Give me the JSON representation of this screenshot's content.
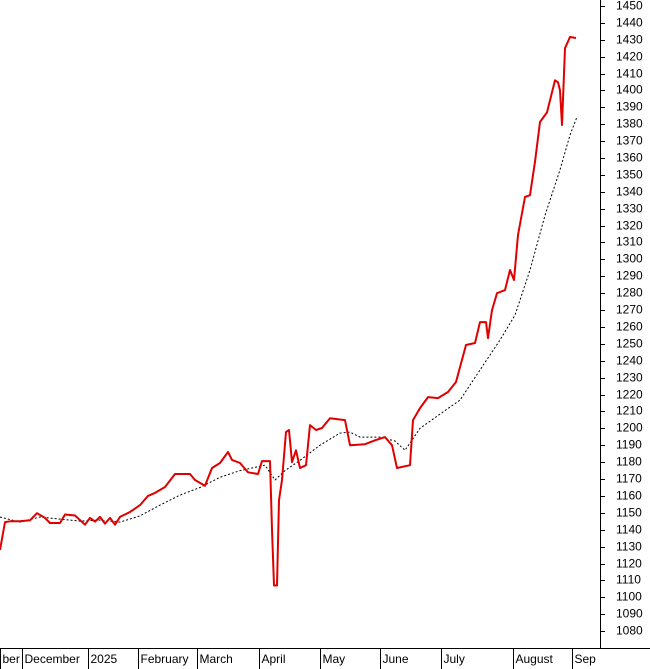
{
  "chart_data": {
    "type": "line",
    "xlim": [
      0,
      600
    ],
    "xticks": [
      {
        "value": 0,
        "label": "ber"
      },
      {
        "value": 22,
        "label": "December"
      },
      {
        "value": 88,
        "label": "2025"
      },
      {
        "value": 138,
        "label": "February"
      },
      {
        "value": 197,
        "label": "March"
      },
      {
        "value": 259,
        "label": "April"
      },
      {
        "value": 320,
        "label": "May"
      },
      {
        "value": 380,
        "label": "June"
      },
      {
        "value": 441,
        "label": "July"
      },
      {
        "value": 513,
        "label": "August"
      },
      {
        "value": 572,
        "label": "Sep"
      }
    ],
    "ylim": [
      1070,
      1453.5
    ],
    "yticks": [
      1080,
      1090,
      1100,
      1110,
      1120,
      1130,
      1140,
      1150,
      1160,
      1170,
      1180,
      1190,
      1200,
      1210,
      1220,
      1230,
      1240,
      1250,
      1260,
      1270,
      1280,
      1290,
      1300,
      1310,
      1320,
      1330,
      1340,
      1350,
      1360,
      1370,
      1380,
      1390,
      1400,
      1410,
      1420,
      1430,
      1440,
      1450
    ],
    "series": [
      {
        "color": "#e00000",
        "dash": "solid",
        "x": [
          0,
          5,
          10,
          20,
          30,
          37,
          45,
          50,
          60,
          65,
          75,
          85,
          90,
          95,
          100,
          105,
          110,
          115,
          120,
          130,
          140,
          148,
          155,
          165,
          175,
          190,
          195,
          205,
          212,
          220,
          228,
          232,
          240,
          248,
          258,
          262,
          270,
          272,
          274,
          277,
          279,
          282,
          286,
          289,
          292,
          296,
          300,
          306,
          310,
          316,
          322,
          330,
          345,
          350,
          365,
          375,
          385,
          392,
          397,
          410,
          413,
          420,
          428,
          438,
          448,
          456,
          466,
          475,
          480,
          486,
          488,
          492,
          497,
          505,
          510,
          514,
          518,
          525,
          530,
          535,
          540,
          547,
          555,
          558,
          560,
          562,
          565,
          570,
          576
        ],
        "values": [
          1128,
          1144.5,
          1145,
          1145,
          1145.6,
          1149.8,
          1147,
          1144,
          1144,
          1149,
          1148.4,
          1143,
          1147,
          1144.8,
          1147.6,
          1143.6,
          1147,
          1143,
          1147.6,
          1150.5,
          1154.6,
          1160,
          1161.8,
          1165.3,
          1173,
          1173,
          1169.4,
          1166,
          1176.5,
          1179.5,
          1186,
          1181.3,
          1179.5,
          1174,
          1173,
          1180.6,
          1180.6,
          1140,
          1107,
          1107,
          1157.5,
          1169.4,
          1197.8,
          1199,
          1180,
          1187,
          1176.5,
          1178.2,
          1201.9,
          1199,
          1200.2,
          1206,
          1204.9,
          1190,
          1190.6,
          1192.9,
          1194.8,
          1190,
          1176.5,
          1178.2,
          1204.9,
          1212,
          1218.5,
          1217.9,
          1221.5,
          1227.4,
          1249.3,
          1250.5,
          1262.9,
          1262.9,
          1253.4,
          1270,
          1280,
          1281.8,
          1293.7,
          1287.8,
          1314.4,
          1336.9,
          1338,
          1357.8,
          1381.3,
          1387,
          1406,
          1404.8,
          1400,
          1379.5,
          1425,
          1431.6,
          1431
        ]
      },
      {
        "color": "#000000",
        "dash": "dotted",
        "x": [
          0,
          20,
          40,
          60,
          80,
          100,
          120,
          140,
          160,
          180,
          200,
          220,
          240,
          265,
          275,
          285,
          300,
          320,
          340,
          350,
          360,
          380,
          395,
          405,
          420,
          440,
          460,
          480,
          500,
          515,
          530,
          545,
          560,
          570,
          577
        ],
        "values": [
          1147.5,
          1144.5,
          1147.5,
          1146.3,
          1145.1,
          1145.7,
          1144.5,
          1148.2,
          1154.6,
          1160.5,
          1165,
          1171,
          1175,
          1178.2,
          1169.4,
          1175,
          1181,
          1190,
          1197.2,
          1197.8,
          1194.8,
          1194.8,
          1192.5,
          1187,
          1200,
          1208.4,
          1216.7,
          1234.5,
          1252.3,
          1267,
          1293.7,
          1326,
          1353,
          1373.6,
          1384.3
        ]
      }
    ]
  }
}
